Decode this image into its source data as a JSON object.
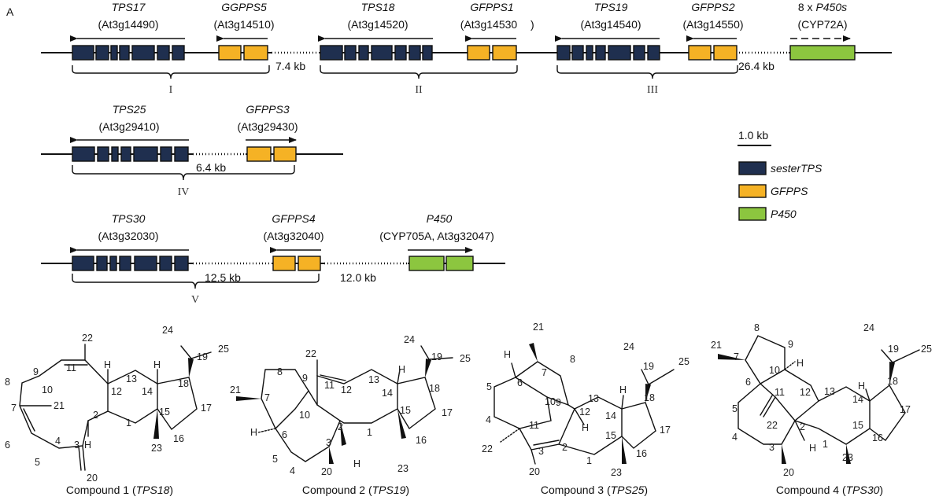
{
  "panel_label": "A",
  "scale_bar": "1.0 kb",
  "legend": [
    {
      "label": "sesterTPS",
      "color": "#1f2f4f"
    },
    {
      "label": "GFPPS",
      "color": "#f5b225"
    },
    {
      "label": "P450",
      "color": "#8cc63f"
    }
  ],
  "row1": {
    "genes": [
      {
        "name": "TPS17",
        "id": "(At3g14490)"
      },
      {
        "name": "GGPPS5",
        "id": "(At3g14510)"
      },
      {
        "name": "TPS18",
        "id": "(At3g14520)"
      },
      {
        "name": "GFPPS1",
        "id": "(At3g14530"
      },
      {
        "name": "TPS19",
        "id": "(At3g14540)"
      },
      {
        "name": "GFPPS2",
        "id": "(At3g14550)"
      },
      {
        "name_prefix": "8 x ",
        "name": "P450s",
        "id": "(CYP72A)"
      }
    ],
    "stray_paren": ")",
    "gaps": [
      "7.4 kb",
      "26.4 kb"
    ],
    "clusters": [
      "I",
      "II",
      "III"
    ]
  },
  "row2": {
    "genes": [
      {
        "name": "TPS25",
        "id": "(At3g29410)"
      },
      {
        "name": "GFPPS3",
        "id": "(At3g29430)"
      }
    ],
    "gaps": [
      "6.4 kb"
    ],
    "clusters": [
      "IV"
    ]
  },
  "row3": {
    "genes": [
      {
        "name": "TPS30",
        "id": "(At3g32030)"
      },
      {
        "name": "GFPPS4",
        "id": "(At3g32040)"
      },
      {
        "name": "P450",
        "id": "(CYP705A, At3g32047)"
      }
    ],
    "gaps": [
      "12.5 kb",
      "12.0 kb"
    ],
    "clusters": [
      "V"
    ]
  },
  "compounds": [
    {
      "prefix": "Compound 1 (",
      "gene": "TPS18",
      "suffix": ")"
    },
    {
      "prefix": "Compound 2 (",
      "gene": "TPS19",
      "suffix": ")"
    },
    {
      "prefix": "Compound 3 (",
      "gene": "TPS25",
      "suffix": ")"
    },
    {
      "prefix": "Compound 4 (",
      "gene": "TPS30",
      "suffix": ")"
    }
  ],
  "atom_labels": {
    "c1": [
      "22",
      "11",
      "9",
      "10",
      "8",
      "7",
      "21",
      "6",
      "5",
      "4",
      "3",
      "20",
      "2",
      "12",
      "13",
      "14",
      "1",
      "15",
      "16",
      "17",
      "18",
      "19",
      "24",
      "25",
      "23",
      "H",
      "H",
      "H"
    ],
    "c2": [
      "22",
      "11",
      "12",
      "13",
      "9",
      "8",
      "7",
      "21",
      "10",
      "6",
      "5",
      "4",
      "3",
      "20",
      "2",
      "1",
      "14",
      "15",
      "16",
      "17",
      "18",
      "19",
      "24",
      "25",
      "23",
      "H",
      "H",
      "H"
    ],
    "c3": [
      "21",
      "7",
      "8",
      "H",
      "6",
      "5",
      "9",
      "10",
      "4",
      "11",
      "22",
      "3",
      "20",
      "2",
      "1",
      "12",
      "H",
      "13",
      "14",
      "15",
      "16",
      "23",
      "17",
      "18",
      "19",
      "24",
      "25",
      "H"
    ],
    "c4": [
      "8",
      "9",
      "21",
      "7",
      "10",
      "H",
      "6",
      "11",
      "22",
      "5",
      "12",
      "2",
      "4",
      "3",
      "20",
      "1",
      "H",
      "13",
      "14",
      "15",
      "16",
      "17",
      "18",
      "19",
      "24",
      "25",
      "23",
      "H"
    ]
  }
}
